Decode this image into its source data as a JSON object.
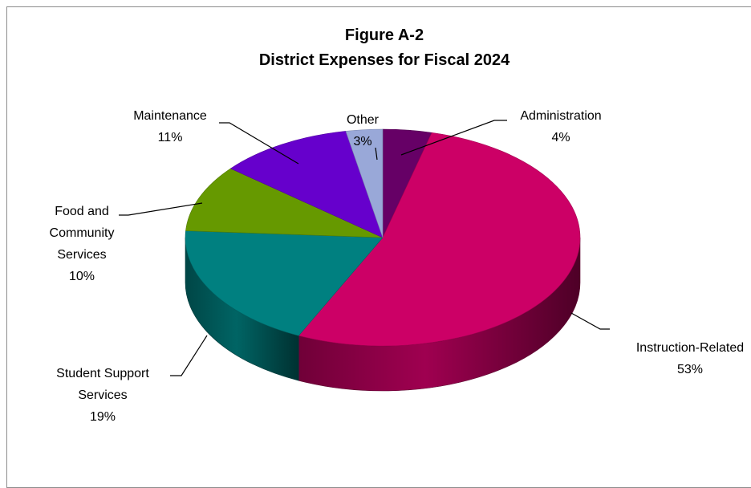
{
  "chart_data": {
    "type": "pie",
    "title": "Figure A-2",
    "subtitle": "District Expenses for Fiscal 2024",
    "three_d": true,
    "legend": "none",
    "slices": [
      {
        "name": "Administration",
        "value": 4,
        "label_lines": [
          "Administration"
        ],
        "pct_label": "4%",
        "color": "#660066"
      },
      {
        "name": "Instruction-Related",
        "value": 53,
        "label_lines": [
          "Instruction-Related"
        ],
        "pct_label": "53%",
        "color": "#cc0066"
      },
      {
        "name": "Student Support Services",
        "value": 19,
        "label_lines": [
          "Student  Support",
          "Services"
        ],
        "pct_label": "19%",
        "color": "#008080"
      },
      {
        "name": "Food and Community Services",
        "value": 10,
        "label_lines": [
          "Food and",
          "Community",
          "Services"
        ],
        "pct_label": "10%",
        "color": "#669900"
      },
      {
        "name": "Maintenance",
        "value": 11,
        "label_lines": [
          "Maintenance"
        ],
        "pct_label": "11%",
        "color": "#6600cc"
      },
      {
        "name": "Other",
        "value": 3,
        "label_lines": [
          "Other"
        ],
        "pct_label": "3%",
        "color": "#99a8d8"
      }
    ]
  }
}
